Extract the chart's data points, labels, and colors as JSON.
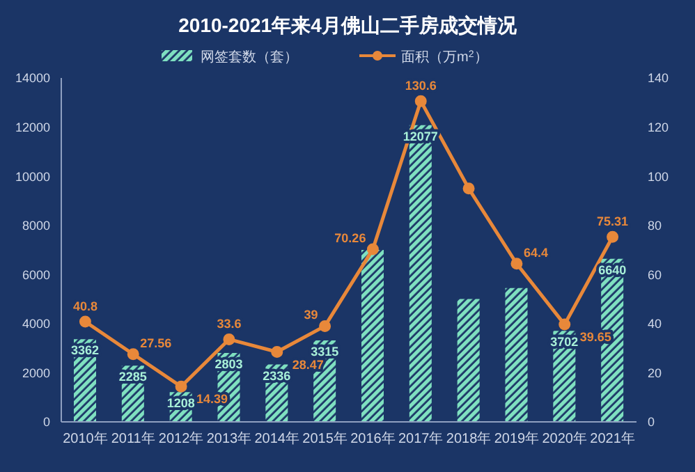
{
  "chart_data": {
    "type": "bar",
    "title": "2010-2021年来4月佛山二手房成交情况",
    "categories": [
      "2010年",
      "2011年",
      "2012年",
      "2013年",
      "2014年",
      "2015年",
      "2016年",
      "2017年",
      "2018年",
      "2019年",
      "2020年",
      "2021年"
    ],
    "series": [
      {
        "name": "网签套数（套）",
        "color": "#7fe0c0",
        "values": [
          3362,
          2285,
          1208,
          2803,
          2336,
          3315,
          7000,
          12077,
          5000,
          5450,
          3702,
          6640
        ],
        "value_labels": [
          "3362",
          "2285",
          "1208",
          "2803",
          "2336",
          "3315",
          null,
          "12077",
          null,
          null,
          "3702",
          "6640"
        ]
      },
      {
        "name": "面积（万m$^{2}$）",
        "type": "line",
        "axis": "y2",
        "color": "#e8883a",
        "values": [
          40.8,
          27.56,
          14.39,
          33.6,
          28.47,
          39,
          70.26,
          130.6,
          95,
          64.4,
          39.65,
          75.31
        ],
        "value_labels": [
          "40.8",
          "27.56",
          "14.39",
          "33.6",
          "28.47",
          "39",
          "70.26",
          "130.6",
          null,
          "64.4",
          "39.65",
          "75.31"
        ]
      }
    ],
    "ylim": [
      0,
      14000
    ],
    "yticks": [
      0,
      2000,
      4000,
      6000,
      8000,
      10000,
      12000,
      14000
    ],
    "y2lim": [
      0,
      140
    ],
    "y2ticks": [
      0,
      20,
      40,
      60,
      80,
      100,
      120,
      140
    ],
    "marker": "circle",
    "legend": "top"
  }
}
